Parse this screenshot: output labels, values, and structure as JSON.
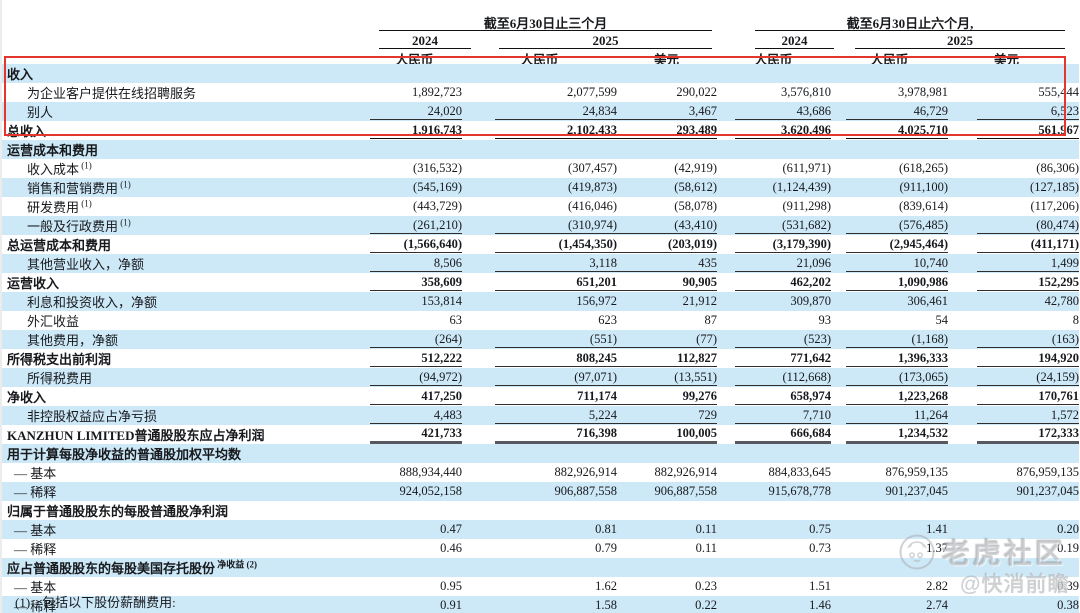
{
  "colors": {
    "stripe_blue": "#cde8f7",
    "highlight_red": "#e4362c",
    "text": "#17191d",
    "watermark_gray": "#a8acb0"
  },
  "header": {
    "q3_title": "截至6月30日止三个月",
    "q6_title": "截至6月30日止六个月,",
    "q3_year_2024": "2024",
    "q3_year_2025": "2025",
    "q6_year_2024": "2024",
    "q6_year_2025": "2025",
    "cur_q3_2024_rmb": "人民币",
    "cur_q3_2025_rmb": "人民币",
    "cur_q3_2025_usd": "美元",
    "cur_q6_2024_rmb": "人民币",
    "cur_q6_2025_rmb": "人民币",
    "cur_q6_2025_usd": "美元"
  },
  "table": {
    "rows": [
      {
        "label": "收入",
        "section": true,
        "bold": true,
        "indent": 0,
        "values": null,
        "rule": null
      },
      {
        "label": "为企业客户提供在线招聘服务",
        "indent": 1,
        "values": [
          "1,892,723",
          "2,077,599",
          "290,022",
          "3,576,810",
          "3,978,981",
          "555,444"
        ],
        "rule": null
      },
      {
        "label": "别人",
        "indent": 1,
        "values": [
          "24,020",
          "24,834",
          "3,467",
          "43,686",
          "46,729",
          "6,523"
        ],
        "rule": "thin"
      },
      {
        "label": "总收入",
        "bold": true,
        "indent": 0,
        "values": [
          "1,916,743",
          "2,102,433",
          "293,489",
          "3,620,496",
          "4,025,710",
          "561,967"
        ],
        "rule": "thick"
      },
      {
        "label": "运营成本和费用",
        "section": true,
        "bold": true,
        "indent": 0,
        "values": null,
        "rule": null
      },
      {
        "label": "收入成本",
        "sup": "(1)",
        "indent": 1,
        "values": [
          "(316,532)",
          "(307,457)",
          "(42,919)",
          "(611,971)",
          "(618,265)",
          "(86,306)"
        ],
        "rule": null
      },
      {
        "label": "销售和营销费用",
        "sup": "(1)",
        "indent": 1,
        "values": [
          "(545,169)",
          "(419,873)",
          "(58,612)",
          "(1,124,439)",
          "(911,100)",
          "(127,185)"
        ],
        "rule": null
      },
      {
        "label": "研发费用",
        "sup": "(1)",
        "indent": 1,
        "values": [
          "(443,729)",
          "(416,046)",
          "(58,078)",
          "(911,298)",
          "(839,614)",
          "(117,206)"
        ],
        "rule": null
      },
      {
        "label": "一般及行政费用",
        "sup": "(1)",
        "indent": 1,
        "values": [
          "(261,210)",
          "(310,974)",
          "(43,410)",
          "(531,682)",
          "(576,485)",
          "(80,474)"
        ],
        "rule": "thin"
      },
      {
        "label": "总运营成本和费用",
        "bold": true,
        "indent": 0,
        "values": [
          "(1,566,640)",
          "(1,454,350)",
          "(203,019)",
          "(3,179,390)",
          "(2,945,464)",
          "(411,171)"
        ],
        "rule": "thin"
      },
      {
        "label": "其他营业收入，净额",
        "indent": 1,
        "values": [
          "8,506",
          "3,118",
          "435",
          "21,096",
          "10,740",
          "1,499"
        ],
        "rule": "thin"
      },
      {
        "label": "运营收入",
        "bold": true,
        "indent": 0,
        "values": [
          "358,609",
          "651,201",
          "90,905",
          "462,202",
          "1,090,986",
          "152,295"
        ],
        "rule": "thin"
      },
      {
        "label": "利息和投资收入，净额",
        "indent": 1,
        "values": [
          "153,814",
          "156,972",
          "21,912",
          "309,870",
          "306,461",
          "42,780"
        ],
        "rule": null
      },
      {
        "label": "外汇收益",
        "indent": 1,
        "values": [
          "63",
          "623",
          "87",
          "93",
          "54",
          "8"
        ],
        "rule": null
      },
      {
        "label": "其他费用，净额",
        "indent": 1,
        "values": [
          "(264)",
          "(551)",
          "(77)",
          "(523)",
          "(1,168)",
          "(163)"
        ],
        "rule": "thin"
      },
      {
        "label": "所得税支出前利润",
        "bold": true,
        "indent": 0,
        "values": [
          "512,222",
          "808,245",
          "112,827",
          "771,642",
          "1,396,333",
          "194,920"
        ],
        "rule": "thin"
      },
      {
        "label": "所得税费用",
        "indent": 1,
        "values": [
          "(94,972)",
          "(97,071)",
          "(13,551)",
          "(112,668)",
          "(173,065)",
          "(24,159)"
        ],
        "rule": "thin"
      },
      {
        "label": "净收入",
        "bold": true,
        "indent": 0,
        "values": [
          "417,250",
          "711,174",
          "99,276",
          "658,974",
          "1,223,268",
          "170,761"
        ],
        "rule": "thin"
      },
      {
        "label": "非控股权益应占净亏损",
        "indent": 1,
        "values": [
          "4,483",
          "5,224",
          "729",
          "7,710",
          "11,264",
          "1,572"
        ],
        "rule": "thin"
      },
      {
        "label": "KANZHUN LIMITED普通股股东应占净利润",
        "bold": true,
        "indent": 0,
        "values": [
          "421,733",
          "716,398",
          "100,005",
          "666,684",
          "1,234,532",
          "172,333"
        ],
        "rule": "heavy"
      },
      {
        "label": "用于计算每股净收益的普通股加权平均数",
        "section": true,
        "bold": true,
        "indent": 0,
        "values": null,
        "rule": null
      },
      {
        "label": "— 基本",
        "indent": 2,
        "values": [
          "888,934,440",
          "882,926,914",
          "882,926,914",
          "884,833,645",
          "876,959,135",
          "876,959,135"
        ],
        "rule": null
      },
      {
        "label": "— 稀释",
        "indent": 2,
        "values": [
          "924,052,158",
          "906,887,558",
          "906,887,558",
          "915,678,778",
          "901,237,045",
          "901,237,045"
        ],
        "rule": null
      },
      {
        "label": "归属于普通股股东的每股普通股净利润",
        "section": true,
        "bold": true,
        "indent": 0,
        "values": null,
        "rule": null
      },
      {
        "label": "— 基本",
        "indent": 2,
        "values": [
          "0.47",
          "0.81",
          "0.11",
          "0.75",
          "1.41",
          "0.20"
        ],
        "rule": null
      },
      {
        "label": "— 稀释",
        "indent": 2,
        "values": [
          "0.46",
          "0.79",
          "0.11",
          "0.73",
          "1.37",
          "0.19"
        ],
        "rule": null
      },
      {
        "label": "应占普通股股东的每股美国存托股份",
        "sup": "净收益 (2)",
        "section": true,
        "bold": true,
        "indent": 0,
        "values": null,
        "rule": null
      },
      {
        "label": "— 基本",
        "indent": 2,
        "values": [
          "0.95",
          "1.62",
          "0.23",
          "1.51",
          "2.82",
          "0.39"
        ],
        "rule": null
      },
      {
        "label": "— 稀释",
        "indent": 2,
        "values": [
          "0.91",
          "1.58",
          "0.22",
          "1.46",
          "2.74",
          "0.38"
        ],
        "rule": null
      }
    ]
  },
  "footnote": {
    "marker": "(1)",
    "text": "包括以下股份薪酬费用:"
  },
  "watermark": {
    "icon": "tiger-logo",
    "community": "老虎社区",
    "author": "@快消前瞻"
  }
}
